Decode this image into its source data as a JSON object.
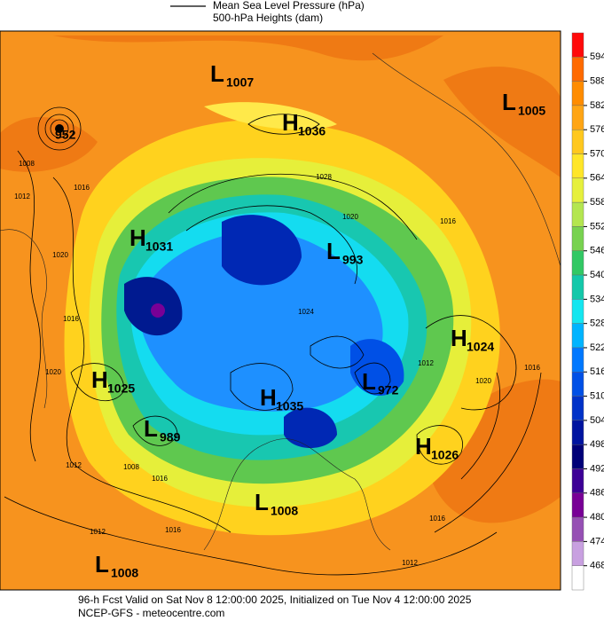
{
  "legend": {
    "line_label": "Mean Sea Level Pressure (hPa)",
    "fill_label": "500-hPa Heights (dam)"
  },
  "colorbar": {
    "ticks": [
      594,
      588,
      582,
      576,
      570,
      564,
      558,
      552,
      546,
      540,
      534,
      528,
      522,
      516,
      510,
      504,
      498,
      492,
      486,
      480,
      474,
      468
    ],
    "colors": [
      "#ff0a0a",
      "#ff6a00",
      "#ff8c00",
      "#ffa514",
      "#ffc81e",
      "#ffe628",
      "#e6f03c",
      "#b4e650",
      "#78d250",
      "#32c864",
      "#14c8aa",
      "#14e6f0",
      "#00b4ff",
      "#0078ff",
      "#0050e6",
      "#0032c8",
      "#0014a0",
      "#000078",
      "#3c0096",
      "#780096",
      "#9650b4",
      "#c8a0e0",
      "#ffffff"
    ]
  },
  "centers": [
    {
      "type": "L",
      "value": "1007"
    },
    {
      "type": "H",
      "value": "1036"
    },
    {
      "type": "L",
      "value": "1005"
    },
    {
      "type": "L",
      "value": "952"
    },
    {
      "type": "H",
      "value": "1031"
    },
    {
      "type": "L",
      "value": "993"
    },
    {
      "type": "H",
      "value": "1024"
    },
    {
      "type": "H",
      "value": "1025"
    },
    {
      "type": "L",
      "value": "972"
    },
    {
      "type": "H",
      "value": "1035"
    },
    {
      "type": "L",
      "value": "989"
    },
    {
      "type": "H",
      "value": "1026"
    },
    {
      "type": "L",
      "value": "1008"
    },
    {
      "type": "L",
      "value": "1008"
    }
  ],
  "isobar_labels": [
    "1008",
    "1012",
    "1016",
    "1020",
    "1016",
    "1020",
    "1012",
    "1008",
    "1016",
    "1012",
    "1016",
    "1028",
    "1020",
    "1016",
    "1024",
    "1012",
    "1016",
    "1020",
    "1016",
    "1012"
  ],
  "footer": [
    "96-h Fcst Valid on Sat Nov  8 12:00:00 2025, Initialized on Tue Nov  4 12:00:00 2025",
    "NCEP-GFS - meteocentre.com"
  ]
}
